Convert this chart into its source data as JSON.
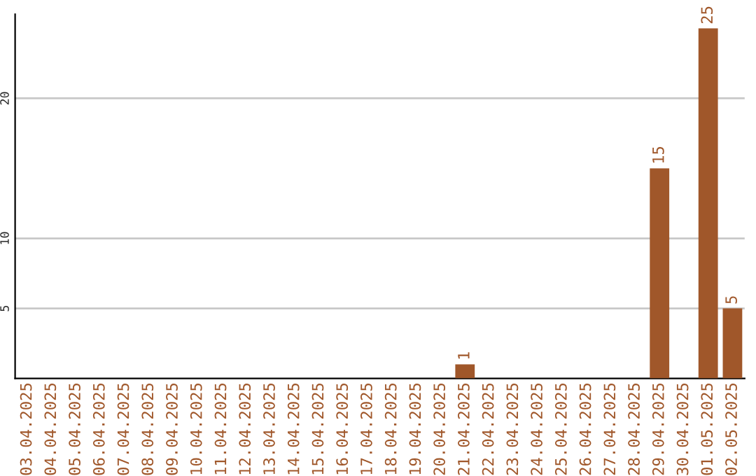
{
  "chart_data": {
    "type": "bar",
    "categories": [
      "03.04.2025",
      "04.04.2025",
      "05.04.2025",
      "06.04.2025",
      "07.04.2025",
      "08.04.2025",
      "09.04.2025",
      "10.04.2025",
      "11.04.2025",
      "12.04.2025",
      "13.04.2025",
      "14.04.2025",
      "15.04.2025",
      "16.04.2025",
      "17.04.2025",
      "18.04.2025",
      "19.04.2025",
      "20.04.2025",
      "21.04.2025",
      "22.04.2025",
      "23.04.2025",
      "24.04.2025",
      "25.04.2025",
      "26.04.2025",
      "27.04.2025",
      "28.04.2025",
      "29.04.2025",
      "30.04.2025",
      "01.05.2025",
      "02.05.2025"
    ],
    "values": [
      0,
      0,
      0,
      0,
      0,
      0,
      0,
      0,
      0,
      0,
      0,
      0,
      0,
      0,
      0,
      0,
      0,
      0,
      1,
      0,
      0,
      0,
      0,
      0,
      0,
      0,
      15,
      0,
      25,
      5
    ],
    "value_labels": [
      null,
      null,
      null,
      null,
      null,
      null,
      null,
      null,
      null,
      null,
      null,
      null,
      null,
      null,
      null,
      null,
      null,
      null,
      "1",
      null,
      null,
      null,
      null,
      null,
      null,
      null,
      "15",
      null,
      "25",
      "5"
    ],
    "color": "#a0572a",
    "ylim": [
      0,
      26
    ],
    "yticks": [
      5,
      10,
      20
    ],
    "grid": "y"
  }
}
